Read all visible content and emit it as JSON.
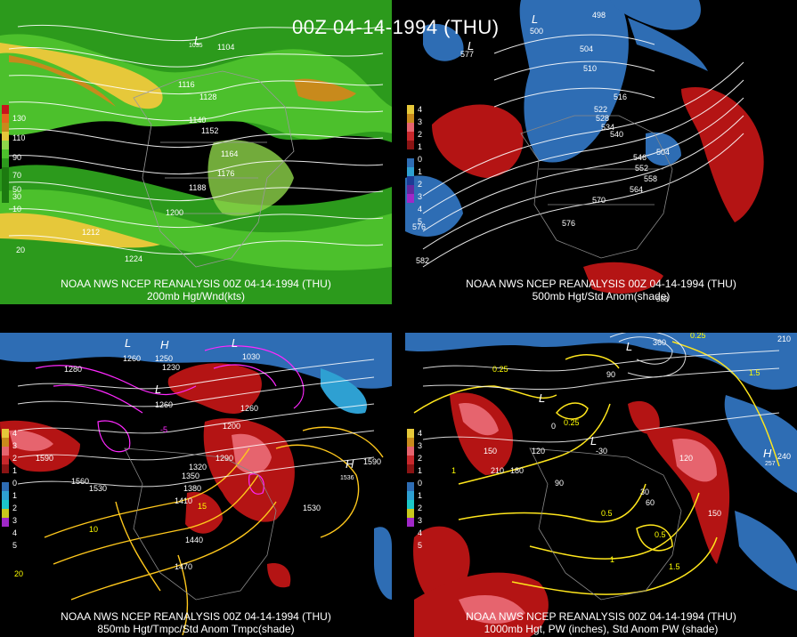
{
  "title": "00Z 04-14-1994 (THU)",
  "panels": [
    {
      "caption_line1": "NOAA NWS NCEP REANALYSIS 00Z 04-14-1994 (THU)",
      "caption_line2": "200mb Hgt/Wnd(kts)",
      "legend": [
        "130",
        "110",
        "90",
        "70",
        "50",
        "30",
        "10"
      ],
      "contour_labels": [
        "1104",
        "1116",
        "1128",
        "1140",
        "1152",
        "1164",
        "1176",
        "1188",
        "1200",
        "1212",
        "1224"
      ],
      "other_labels": [
        "L",
        "1035",
        "20"
      ]
    },
    {
      "caption_line1": "NOAA NWS NCEP REANALYSIS 00Z 04-14-1994 (THU)",
      "caption_line2": "500mb Hgt/Std Anom(shade)",
      "legend": [
        "4",
        "3",
        "2",
        "1",
        "0",
        "1",
        "2",
        "3",
        "4",
        "5"
      ],
      "contour_labels": [
        "498",
        "504",
        "510",
        "516",
        "522",
        "528",
        "534",
        "540",
        "546",
        "552",
        "558",
        "564",
        "570",
        "576",
        "576",
        "582",
        "500",
        "504",
        "577",
        "588"
      ],
      "other_labels": [
        "L",
        "L"
      ]
    },
    {
      "caption_line1": "NOAA NWS NCEP REANALYSIS 00Z 04-14-1994 (THU)",
      "caption_line2": "850mb Hgt/Tmpc/Std Anom Tmpc(shade)",
      "legend": [
        "4",
        "3",
        "2",
        "1",
        "0",
        "1",
        "2",
        "3",
        "4",
        "5"
      ],
      "contour_labels": [
        "1280",
        "1260",
        "1250",
        "1230",
        "1260",
        "1200",
        "1260",
        "1290",
        "1320",
        "1350",
        "1380",
        "1410",
        "1440",
        "1470",
        "1530",
        "1560",
        "1590",
        "1590",
        "1530",
        "1536",
        "1030",
        "15",
        "10",
        "-5",
        "20"
      ],
      "other_labels": [
        "L",
        "H",
        "L",
        "L",
        "H"
      ]
    },
    {
      "caption_line1": "NOAA NWS NCEP REANALYSIS 00Z 04-14-1994 (THU)",
      "caption_line2": "1000mb Hgt, PW (inches), Std Anom PW (shade)",
      "legend": [
        "4",
        "3",
        "2",
        "1",
        "0",
        "1",
        "2",
        "3",
        "4",
        "5"
      ],
      "contour_labels": [
        "0.25",
        "0.25",
        "0.25",
        "0.5",
        "0.5",
        "1",
        "1",
        "1.5",
        "1.5",
        "210",
        "180",
        "150",
        "120",
        "90",
        "60",
        "30",
        "0",
        "-30",
        "360",
        "210",
        "240",
        "257",
        "120",
        "150",
        "90"
      ],
      "other_labels": [
        "L",
        "L",
        "L",
        "H"
      ]
    }
  ]
}
